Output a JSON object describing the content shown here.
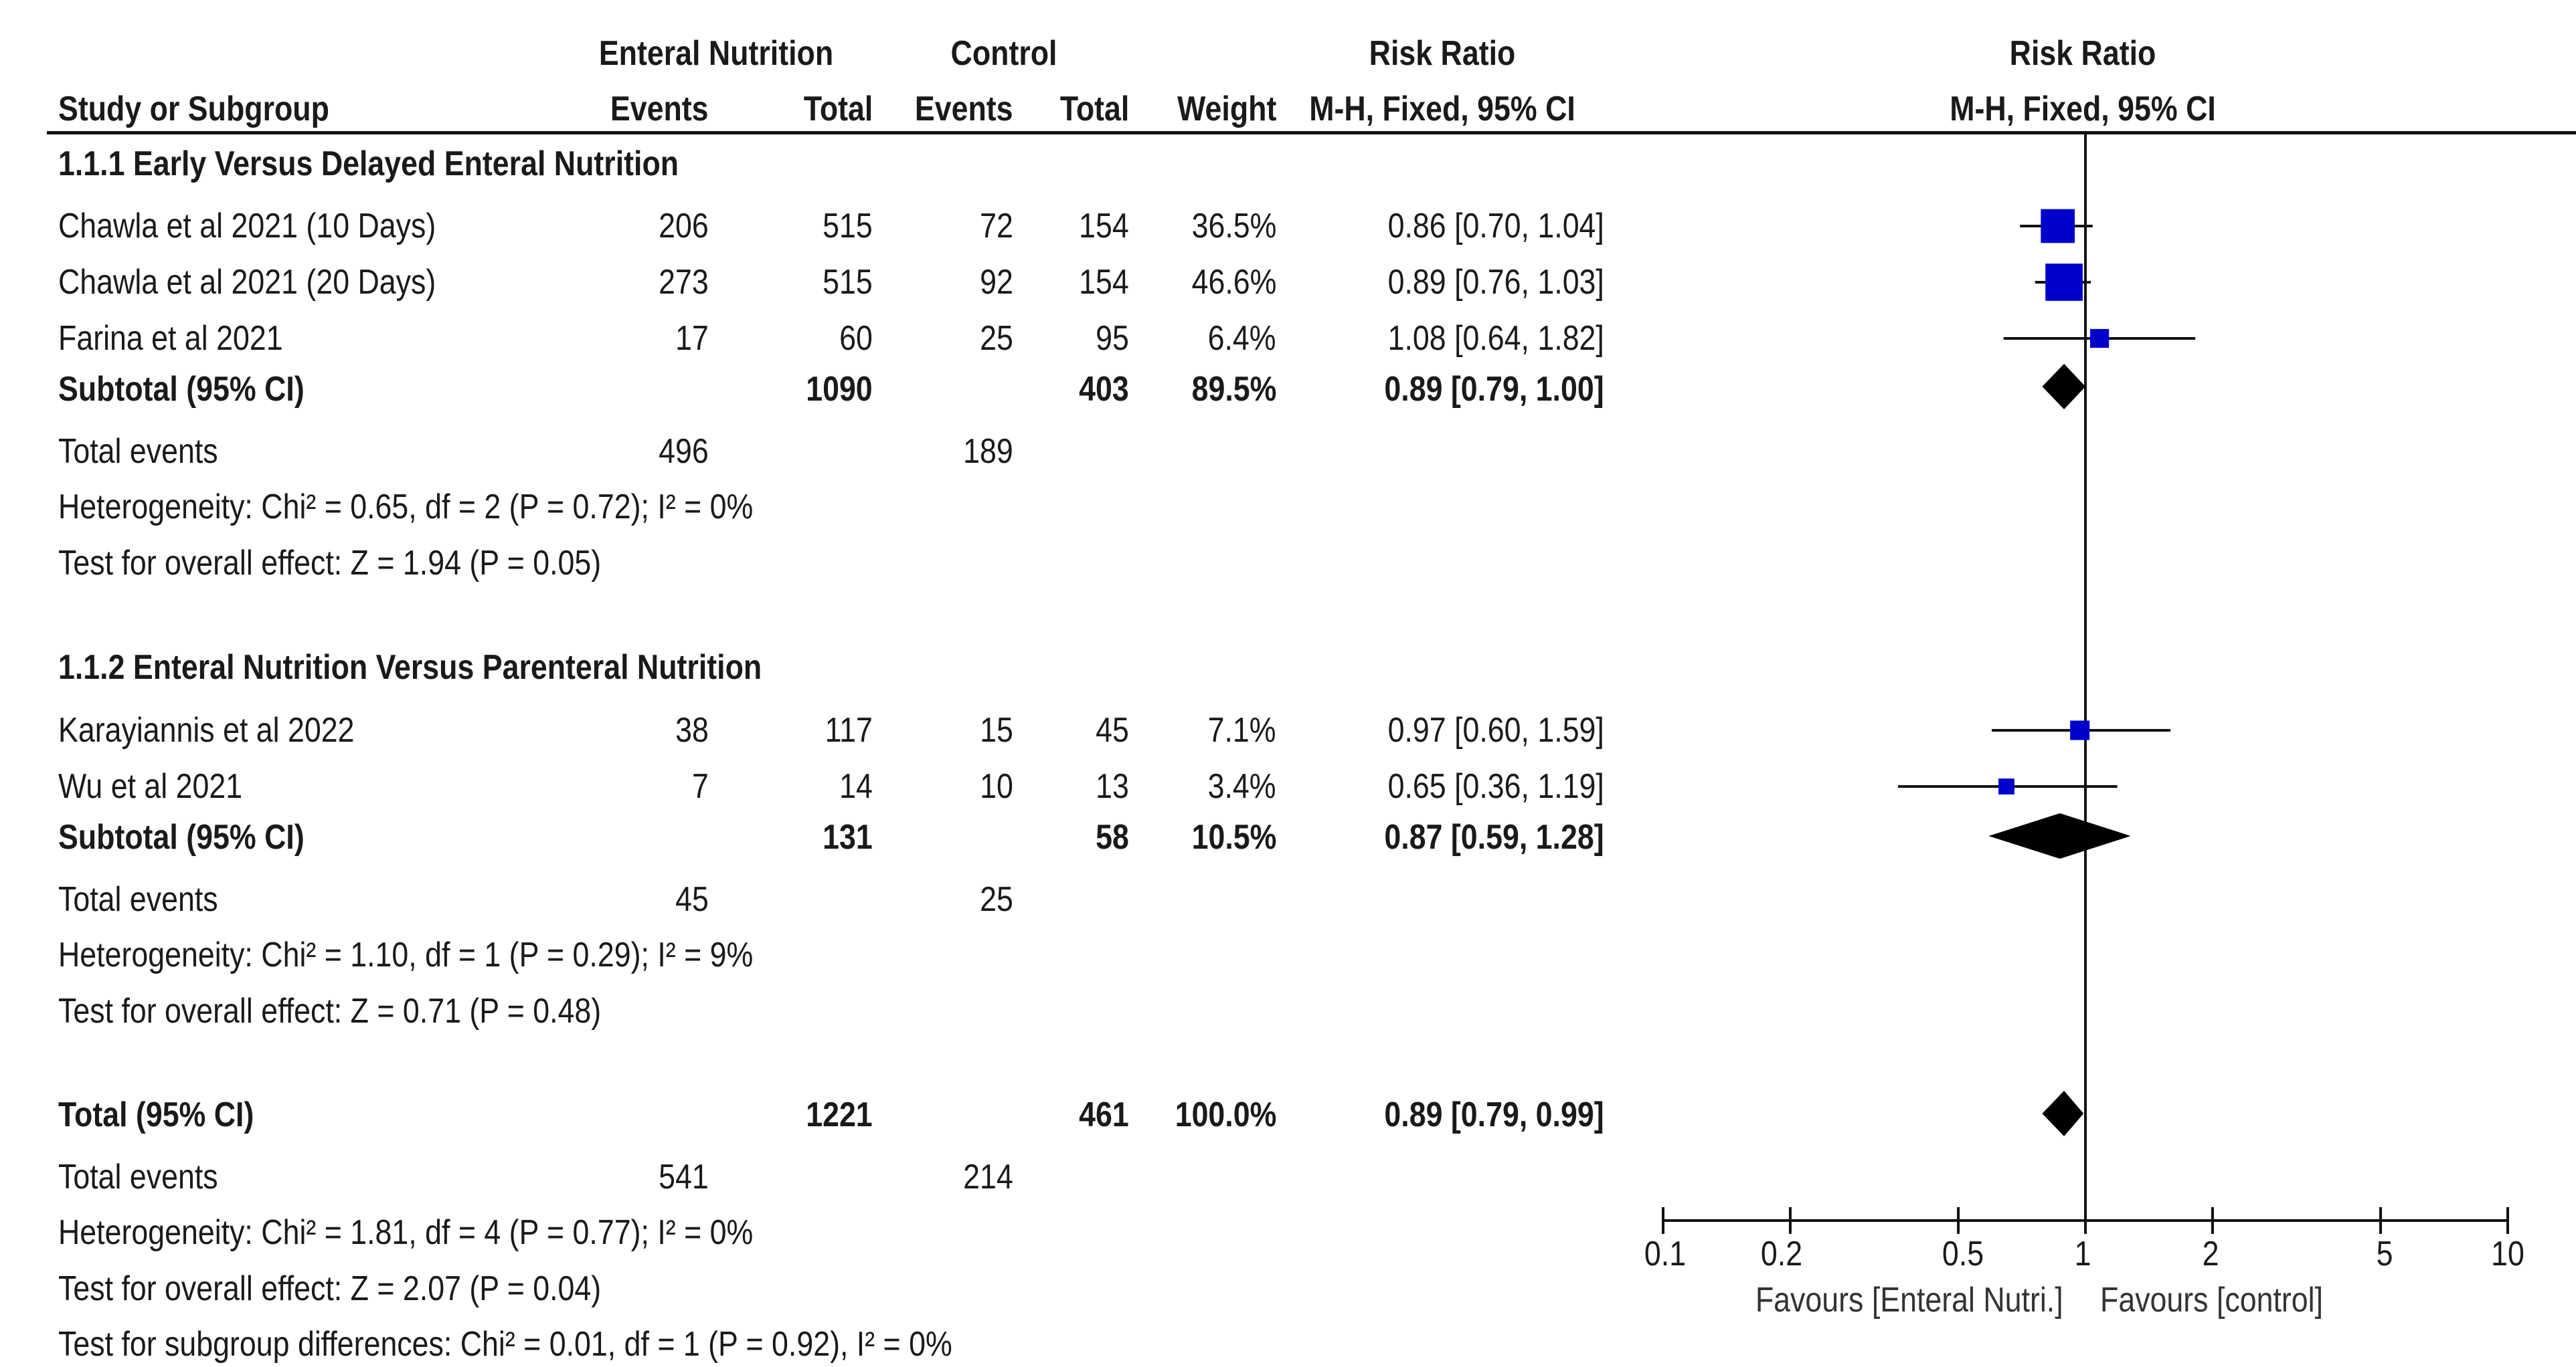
{
  "header": {
    "group1": "Enteral Nutrition",
    "group2": "Control",
    "rr_title_left": "Risk Ratio",
    "rr_title_right": "Risk Ratio",
    "study_col": "Study or Subgroup",
    "events1": "Events",
    "total1": "Total",
    "events2": "Events",
    "total2": "Total",
    "weight": "Weight",
    "method_left": "M-H, Fixed, 95% CI",
    "method_right": "M-H, Fixed, 95% CI"
  },
  "subgroup1": {
    "title": "1.1.1 Early Versus Delayed Enteral Nutrition",
    "studies": [
      {
        "name": "Chawla et al 2021 (10 Days)",
        "e1": "206",
        "n1": "515",
        "e2": "72",
        "n2": "154",
        "weight": "36.5%",
        "ci": "0.86 [0.70, 1.04]"
      },
      {
        "name": "Chawla et al 2021 (20 Days)",
        "e1": "273",
        "n1": "515",
        "e2": "92",
        "n2": "154",
        "weight": "46.6%",
        "ci": "0.89 [0.76, 1.03]"
      },
      {
        "name": "Farina et al 2021",
        "e1": "17",
        "n1": "60",
        "e2": "25",
        "n2": "95",
        "weight": "6.4%",
        "ci": "1.08 [0.64, 1.82]"
      }
    ],
    "subtotal": {
      "label": "Subtotal (95% CI)",
      "n1": "1090",
      "n2": "403",
      "weight": "89.5%",
      "ci": "0.89 [0.79, 1.00]"
    },
    "total_events": {
      "label": "Total events",
      "e1": "496",
      "e2": "189"
    },
    "heterogeneity": "Heterogeneity: Chi² = 0.65, df = 2 (P = 0.72); I² = 0%",
    "overall": "Test for overall effect: Z = 1.94 (P = 0.05)"
  },
  "subgroup2": {
    "title": "1.1.2 Enteral Nutrition Versus Parenteral Nutrition",
    "studies": [
      {
        "name": "Karayiannis et al 2022",
        "e1": "38",
        "n1": "117",
        "e2": "15",
        "n2": "45",
        "weight": "7.1%",
        "ci": "0.97 [0.60, 1.59]"
      },
      {
        "name": "Wu et al 2021",
        "e1": "7",
        "n1": "14",
        "e2": "10",
        "n2": "13",
        "weight": "3.4%",
        "ci": "0.65 [0.36, 1.19]"
      }
    ],
    "subtotal": {
      "label": "Subtotal (95% CI)",
      "n1": "131",
      "n2": "58",
      "weight": "10.5%",
      "ci": "0.87 [0.59, 1.28]"
    },
    "total_events": {
      "label": "Total events",
      "e1": "45",
      "e2": "25"
    },
    "heterogeneity": "Heterogeneity: Chi² = 1.10, df = 1 (P = 0.29); I² = 9%",
    "overall": "Test for overall effect: Z = 0.71 (P = 0.48)"
  },
  "total": {
    "label": "Total (95% CI)",
    "n1": "1221",
    "n2": "461",
    "weight": "100.0%",
    "ci": "0.89 [0.79, 0.99]",
    "total_events": {
      "label": "Total events",
      "e1": "541",
      "e2": "214"
    },
    "heterogeneity": "Heterogeneity: Chi² = 1.81, df = 4 (P = 0.77); I² = 0%",
    "overall": "Test for overall effect: Z = 2.07 (P = 0.04)",
    "subgroup_diff": "Test for subgroup differences: Chi² = 0.01, df = 1 (P = 0.92), I² = 0%"
  },
  "axis": {
    "favours_left": "Favours [Enteral Nutri.]",
    "favours_right": "Favours [control]"
  },
  "colors": {
    "marker": "#0000cc",
    "diamond": "#000000",
    "line": "#111111"
  },
  "chart_data": {
    "type": "forest",
    "title": "Risk Ratio",
    "xlabel": "M-H, Fixed, 95% CI",
    "scale": "log",
    "xlim": [
      0.1,
      10
    ],
    "ticks": [
      0.1,
      0.2,
      0.5,
      1,
      2,
      5,
      10
    ],
    "tick_labels": [
      "0.1",
      "0.2",
      "0.5",
      "1",
      "2",
      "5",
      "10"
    ],
    "studies": [
      {
        "name": "Chawla et al 2021 (10 Days)",
        "rr": 0.86,
        "lo": 0.7,
        "hi": 1.04,
        "weight": 36.5
      },
      {
        "name": "Chawla et al 2021 (20 Days)",
        "rr": 0.89,
        "lo": 0.76,
        "hi": 1.03,
        "weight": 46.6
      },
      {
        "name": "Farina et al 2021",
        "rr": 1.08,
        "lo": 0.64,
        "hi": 1.82,
        "weight": 6.4
      },
      {
        "name": "Karayiannis et al 2022",
        "rr": 0.97,
        "lo": 0.6,
        "hi": 1.59,
        "weight": 7.1
      },
      {
        "name": "Wu et al 2021",
        "rr": 0.65,
        "lo": 0.36,
        "hi": 1.19,
        "weight": 3.4
      }
    ],
    "pooled": [
      {
        "name": "Subtotal 1.1.1",
        "rr": 0.89,
        "lo": 0.79,
        "hi": 1.0
      },
      {
        "name": "Subtotal 1.1.2",
        "rr": 0.87,
        "lo": 0.59,
        "hi": 1.28
      },
      {
        "name": "Total",
        "rr": 0.89,
        "lo": 0.79,
        "hi": 0.99
      }
    ]
  }
}
